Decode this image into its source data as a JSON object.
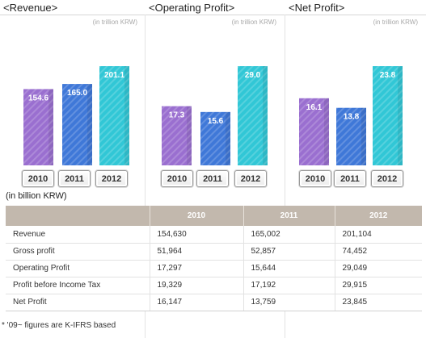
{
  "unit_note": "(in trillion KRW)",
  "colors": {
    "bar_2010": "#9a6fd0",
    "bar_2011": "#3f78d8",
    "bar_2012": "#31c7d6",
    "table_header": "#c2b8ad"
  },
  "chart_data": [
    {
      "type": "bar",
      "title": "<Revenue>",
      "categories": [
        "2010",
        "2011",
        "2012"
      ],
      "values": [
        154.6,
        165.0,
        201.1
      ],
      "value_labels": [
        "154.6",
        "165.0",
        "201.1"
      ],
      "ylabel": "(in trillion KRW)"
    },
    {
      "type": "bar",
      "title": "<Operating Profit>",
      "categories": [
        "2010",
        "2011",
        "2012"
      ],
      "values": [
        17.3,
        15.6,
        29.0
      ],
      "value_labels": [
        "17.3",
        "15.6",
        "29.0"
      ],
      "ylabel": "(in trillion KRW)"
    },
    {
      "type": "bar",
      "title": "<Net Profit>",
      "categories": [
        "2010",
        "2011",
        "2012"
      ],
      "values": [
        16.1,
        13.8,
        23.8
      ],
      "value_labels": [
        "16.1",
        "13.8",
        "23.8"
      ],
      "ylabel": "(in trillion KRW)"
    }
  ],
  "table": {
    "caption": "(in billion KRW)",
    "columns": [
      "",
      "2010",
      "2011",
      "2012"
    ],
    "rows": [
      [
        "Revenue",
        "154,630",
        "165,002",
        "201,104"
      ],
      [
        "Gross profit",
        "51,964",
        "52,857",
        "74,452"
      ],
      [
        "Operating Profit",
        "17,297",
        "15,644",
        "29,049"
      ],
      [
        "Profit before Income Tax",
        "19,329",
        "17,192",
        "29,915"
      ],
      [
        "Net Profit",
        "16,147",
        "13,759",
        "23,845"
      ]
    ]
  },
  "footnote": "* '09~ figures are K-IFRS based"
}
